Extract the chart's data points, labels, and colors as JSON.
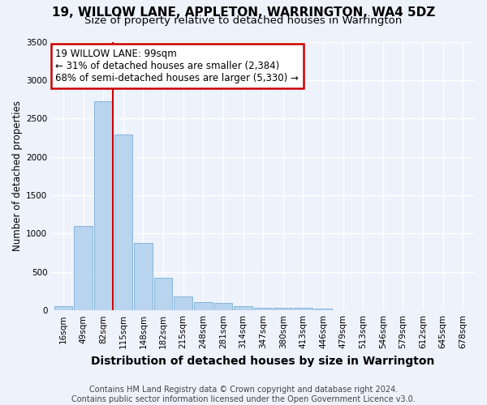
{
  "title_line1": "19, WILLOW LANE, APPLETON, WARRINGTON, WA4 5DZ",
  "title_line2": "Size of property relative to detached houses in Warrington",
  "xlabel": "Distribution of detached houses by size in Warrington",
  "ylabel": "Number of detached properties",
  "categories": [
    "16sqm",
    "49sqm",
    "82sqm",
    "115sqm",
    "148sqm",
    "182sqm",
    "215sqm",
    "248sqm",
    "281sqm",
    "314sqm",
    "347sqm",
    "380sqm",
    "413sqm",
    "446sqm",
    "479sqm",
    "513sqm",
    "546sqm",
    "579sqm",
    "612sqm",
    "645sqm",
    "678sqm"
  ],
  "values": [
    50,
    1100,
    2720,
    2290,
    880,
    420,
    185,
    110,
    95,
    55,
    30,
    30,
    30,
    20,
    0,
    0,
    0,
    0,
    0,
    0,
    0
  ],
  "bar_color": "#b8d4ee",
  "bar_edgecolor": "#7aadd4",
  "vline_color": "#cc0000",
  "annotation_box_edgecolor": "#cc0000",
  "marker_label_line1": "19 WILLOW LANE: 99sqm",
  "marker_label_line2": "← 31% of detached houses are smaller (2,384)",
  "marker_label_line3": "68% of semi-detached houses are larger (5,330) →",
  "ylim": [
    0,
    3500
  ],
  "yticks": [
    0,
    500,
    1000,
    1500,
    2000,
    2500,
    3000,
    3500
  ],
  "background_color": "#eef2fb",
  "grid_color": "#ffffff",
  "title_fontsize": 11,
  "subtitle_fontsize": 9.5,
  "ylabel_fontsize": 8.5,
  "xlabel_fontsize": 10,
  "tick_fontsize": 7.5,
  "annotation_fontsize": 8.5,
  "footer_fontsize": 7.0,
  "footer_line1": "Contains HM Land Registry data © Crown copyright and database right 2024.",
  "footer_line2": "Contains public sector information licensed under the Open Government Licence v3.0."
}
